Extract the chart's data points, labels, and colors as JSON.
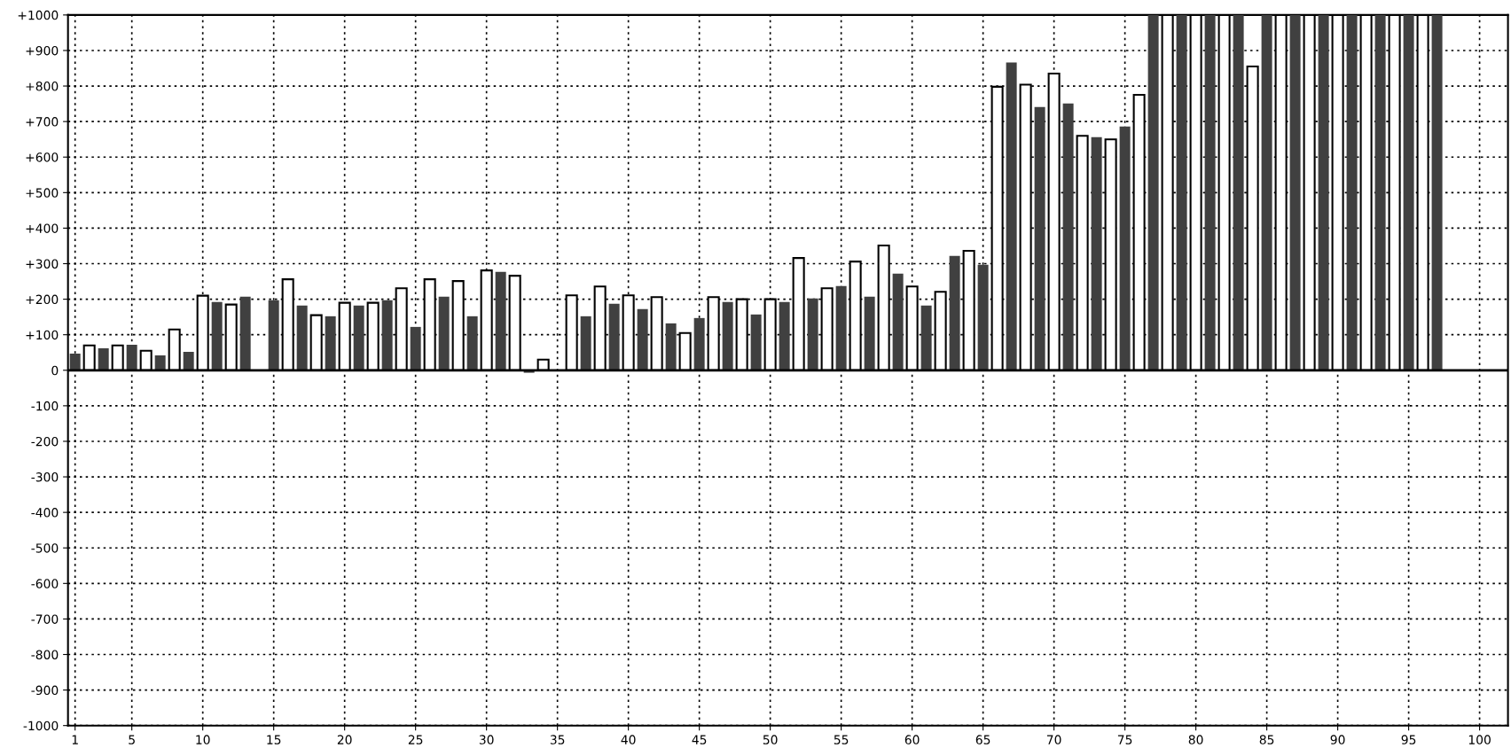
{
  "chart_data": {
    "type": "bar",
    "series": [
      {
        "color": "#404040",
        "x": [
          1,
          3,
          5,
          7,
          9,
          11,
          13,
          15,
          17,
          19,
          21,
          23,
          25,
          27,
          29,
          31,
          33,
          35,
          37,
          39,
          41,
          43,
          45,
          47,
          49,
          51,
          53,
          55,
          57,
          59,
          61,
          63,
          65,
          67,
          69,
          71,
          73,
          75,
          77,
          79,
          81,
          83,
          85,
          87,
          89,
          91,
          93,
          95,
          97
        ],
        "values": [
          47,
          62,
          72,
          42,
          52,
          192,
          207,
          197,
          182,
          152,
          182,
          197,
          122,
          207,
          152,
          277,
          -7,
          0,
          152,
          187,
          172,
          132,
          147,
          192,
          157,
          192,
          202,
          237,
          207,
          272,
          182,
          322,
          297,
          866,
          741,
          751,
          656,
          686,
          1000,
          1000,
          1000,
          1000,
          1000,
          1000,
          1000,
          1000,
          1000,
          1000,
          1000
        ]
      },
      {
        "color": "#ffffff",
        "x": [
          2,
          4,
          6,
          8,
          10,
          12,
          14,
          16,
          18,
          20,
          22,
          24,
          26,
          28,
          30,
          32,
          34,
          36,
          38,
          40,
          42,
          44,
          46,
          48,
          50,
          52,
          54,
          56,
          58,
          60,
          62,
          64,
          66,
          68,
          70,
          72,
          74,
          76,
          78,
          80,
          82,
          84,
          86,
          88,
          90,
          92,
          94,
          96
        ],
        "values": [
          70,
          70,
          55,
          115,
          210,
          185,
          null,
          256,
          155,
          190,
          190,
          231,
          256,
          251,
          281,
          266,
          30,
          211,
          236,
          211,
          206,
          105,
          206,
          200,
          200,
          316,
          231,
          306,
          351,
          236,
          221,
          336,
          798,
          804,
          835,
          660,
          650,
          775,
          1000,
          1000,
          1000,
          855,
          1000,
          1000,
          1000,
          1000,
          1000,
          1000
        ]
      }
    ],
    "xlim": [
      0.5,
      102
    ],
    "xticks": [
      1,
      5,
      10,
      15,
      20,
      25,
      30,
      35,
      40,
      45,
      50,
      55,
      60,
      65,
      70,
      75,
      80,
      85,
      90,
      95,
      100
    ],
    "ylim": [
      -1000,
      1000
    ],
    "yticks": [
      {
        "value": 1000,
        "label": "+1000"
      },
      {
        "value": 900,
        "label": "+900"
      },
      {
        "value": 800,
        "label": "+800"
      },
      {
        "value": 700,
        "label": "+700"
      },
      {
        "value": 600,
        "label": "+600"
      },
      {
        "value": 500,
        "label": "+500"
      },
      {
        "value": 400,
        "label": "+400"
      },
      {
        "value": 300,
        "label": "+300"
      },
      {
        "value": 200,
        "label": "+200"
      },
      {
        "value": 100,
        "label": "+100"
      },
      0,
      {
        "value": -100,
        "label": "-100"
      },
      {
        "value": -200,
        "label": "-200"
      },
      {
        "value": -300,
        "label": "-300"
      },
      {
        "value": -400,
        "label": "-400"
      },
      {
        "value": -500,
        "label": "-500"
      },
      {
        "value": -600,
        "label": "-600"
      },
      {
        "value": -700,
        "label": "-700"
      },
      {
        "value": -800,
        "label": "-800"
      },
      {
        "value": -900,
        "label": "-900"
      },
      {
        "value": -1000,
        "label": "-1000"
      }
    ],
    "grid": true
  }
}
